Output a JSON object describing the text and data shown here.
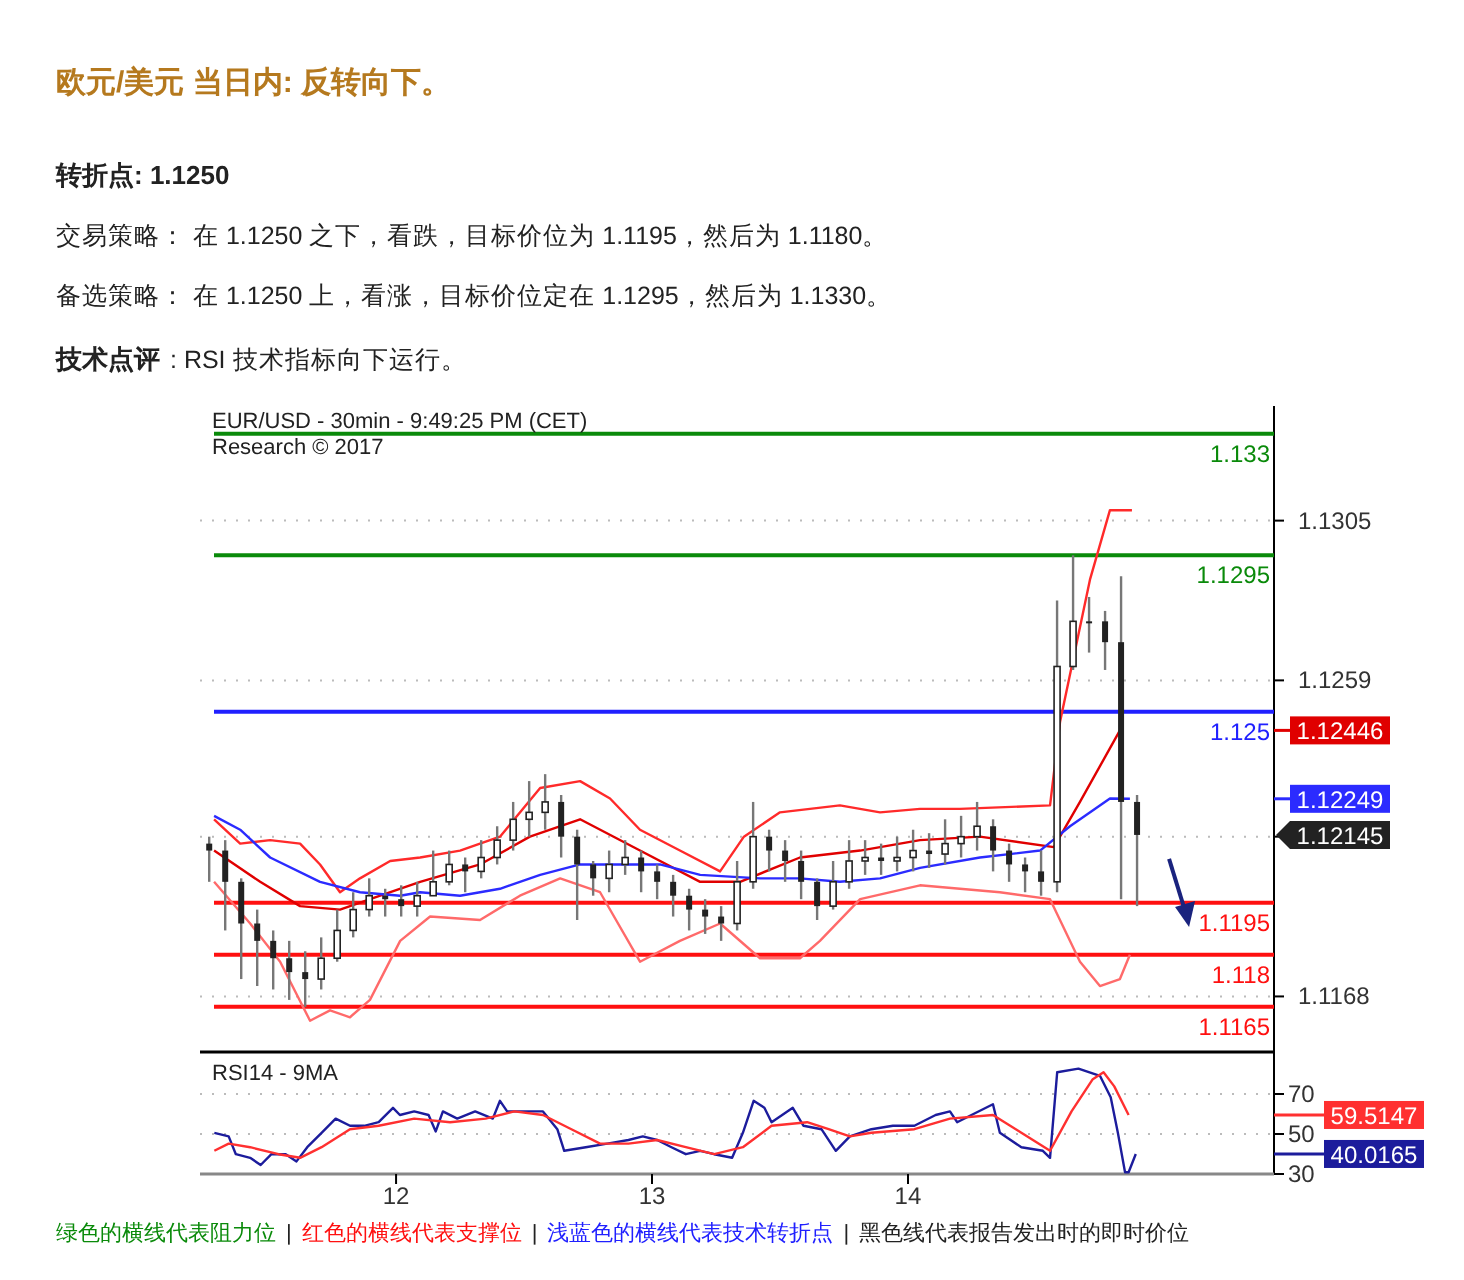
{
  "chart_data": [
    {
      "type": "candlestick",
      "title": "欧元/美元 当日内: 反转向下。",
      "color": "#222222",
      "annotations": [
        "转折点: 1.1250",
        "交易策略： 在 1.1250 之下，看跌，目标价位为 1.1195，然后为 1.1180。",
        "备选策略： 在 1.1250 上，看涨，目标价位定在 1.1295，然后为 1.1330。",
        "技术点评",
        ": RSI 技术指标向下运行。",
        "EUR/USD - 30min - 9:49:25 PM (CET)",
        "Research © 2017",
        "绿色的横线代表阻力位",
        "|",
        "红色的横线代表支撑位",
        "|",
        "浅蓝色的横线代表技术转折点",
        "|",
        "黑色线代表报告发出时的即时价位",
        "1.12446",
        "1.12249",
        "1.12145"
      ],
      "x": [
        11.27,
        11.3325,
        11.395,
        11.4575,
        11.52,
        11.5825,
        11.645,
        11.7075,
        11.77,
        11.8325,
        11.895,
        11.9575,
        12.02,
        12.0825,
        12.145,
        12.2075,
        12.27,
        12.3325,
        12.395,
        12.4575,
        12.52,
        12.5825,
        12.645,
        12.7075,
        12.77,
        12.8325,
        12.895,
        12.9575,
        13.02,
        13.0825,
        13.145,
        13.2075,
        13.27,
        13.3325,
        13.395,
        13.4575,
        13.52,
        13.5825,
        13.645,
        13.7075,
        13.77,
        13.8325,
        13.895,
        13.9575,
        14.02,
        14.0825,
        14.145,
        14.2075,
        14.27,
        14.3325,
        14.395,
        14.4575,
        14.52,
        14.5825,
        14.645,
        14.7075,
        14.77,
        14.8325,
        14.895
      ],
      "ohlc": [
        [
          1.1212,
          1.1214,
          1.1201,
          1.121
        ],
        [
          1.121,
          1.1213,
          1.1187,
          1.1201
        ],
        [
          1.1201,
          1.1202,
          1.1173,
          1.1189
        ],
        [
          1.1189,
          1.1193,
          1.1171,
          1.1184
        ],
        [
          1.1184,
          1.1187,
          1.117,
          1.1179
        ],
        [
          1.1179,
          1.1184,
          1.1167,
          1.1175
        ],
        [
          1.1175,
          1.1181,
          1.1165,
          1.1173
        ],
        [
          1.1173,
          1.1185,
          1.117,
          1.1179
        ],
        [
          1.1179,
          1.1193,
          1.1178,
          1.1187
        ],
        [
          1.1187,
          1.1198,
          1.1185,
          1.1193
        ],
        [
          1.1193,
          1.1202,
          1.1191,
          1.1197
        ],
        [
          1.1197,
          1.1199,
          1.1191,
          1.1196
        ],
        [
          1.1196,
          1.12,
          1.1191,
          1.1194
        ],
        [
          1.1194,
          1.1201,
          1.1191,
          1.1197
        ],
        [
          1.1197,
          1.121,
          1.1197,
          1.1201
        ],
        [
          1.1201,
          1.121,
          1.12,
          1.1206
        ],
        [
          1.1206,
          1.1208,
          1.1198,
          1.1204
        ],
        [
          1.1204,
          1.1213,
          1.1202,
          1.1208
        ],
        [
          1.1208,
          1.1217,
          1.1206,
          1.1213
        ],
        [
          1.1213,
          1.1224,
          1.121,
          1.1219
        ],
        [
          1.1219,
          1.123,
          1.1214,
          1.1221
        ],
        [
          1.1221,
          1.1232,
          1.1216,
          1.1224
        ],
        [
          1.1224,
          1.1226,
          1.1208,
          1.1214
        ],
        [
          1.1214,
          1.1216,
          1.119,
          1.1206
        ],
        [
          1.1206,
          1.1207,
          1.1197,
          1.1202
        ],
        [
          1.1202,
          1.121,
          1.1198,
          1.1206
        ],
        [
          1.1206,
          1.1213,
          1.1203,
          1.1208
        ],
        [
          1.1208,
          1.121,
          1.1198,
          1.1204
        ],
        [
          1.1204,
          1.1206,
          1.1196,
          1.1201
        ],
        [
          1.1201,
          1.1203,
          1.1191,
          1.1197
        ],
        [
          1.1197,
          1.1199,
          1.1187,
          1.1193
        ],
        [
          1.1193,
          1.1196,
          1.1186,
          1.1191
        ],
        [
          1.1191,
          1.1194,
          1.1184,
          1.1189
        ],
        [
          1.1189,
          1.1207,
          1.1187,
          1.1201
        ],
        [
          1.1201,
          1.1224,
          1.1199,
          1.1214
        ],
        [
          1.1214,
          1.1216,
          1.1204,
          1.121
        ],
        [
          1.121,
          1.1213,
          1.1201,
          1.1207
        ],
        [
          1.1207,
          1.121,
          1.1196,
          1.1201
        ],
        [
          1.1201,
          1.1202,
          1.119,
          1.1194
        ],
        [
          1.1194,
          1.1207,
          1.1193,
          1.1201
        ],
        [
          1.1201,
          1.1213,
          1.1199,
          1.1207
        ],
        [
          1.1207,
          1.1213,
          1.1203,
          1.1208
        ],
        [
          1.1208,
          1.1212,
          1.1203,
          1.1207
        ],
        [
          1.1207,
          1.1214,
          1.1204,
          1.1208
        ],
        [
          1.1208,
          1.1216,
          1.1204,
          1.121
        ],
        [
          1.121,
          1.1215,
          1.1205,
          1.1209
        ],
        [
          1.1209,
          1.1219,
          1.1206,
          1.1212
        ],
        [
          1.1212,
          1.122,
          1.1208,
          1.1214
        ],
        [
          1.1214,
          1.1224,
          1.121,
          1.1217
        ],
        [
          1.1217,
          1.1219,
          1.1204,
          1.121
        ],
        [
          1.121,
          1.1212,
          1.1201,
          1.1206
        ],
        [
          1.1206,
          1.1208,
          1.1198,
          1.1204
        ],
        [
          1.1204,
          1.121,
          1.1197,
          1.1201
        ],
        [
          1.1201,
          1.1282,
          1.1198,
          1.1263
        ],
        [
          1.1263,
          1.1295,
          1.1262,
          1.1276
        ],
        [
          1.1276,
          1.1283,
          1.1267,
          1.1276
        ],
        [
          1.1276,
          1.1279,
          1.1262,
          1.127
        ],
        [
          1.127,
          1.1289,
          1.1196,
          1.1224
        ],
        [
          1.1224,
          1.1226,
          1.1194,
          1.12145
        ]
      ],
      "series": [
        {
          "type": "line",
          "color": "#ff2a2a",
          "x": [
            11.289,
            11.391,
            11.508,
            11.625,
            11.703,
            11.781,
            11.859,
            11.977,
            12.094,
            12.25,
            12.406,
            12.563,
            12.719,
            12.836,
            12.953,
            13.109,
            13.266,
            13.359,
            13.5,
            13.734,
            13.891,
            14.047,
            14.203,
            14.555,
            14.594,
            14.711,
            14.789,
            14.875
          ],
          "values": [
            1.1219,
            1.1212,
            1.1213,
            1.1212,
            1.1206,
            1.1198,
            1.1202,
            1.1207,
            1.1208,
            1.121,
            1.1214,
            1.1228,
            1.123,
            1.1225,
            1.1216,
            1.121,
            1.1204,
            1.1214,
            1.1221,
            1.1223,
            1.1221,
            1.1222,
            1.1222,
            1.1223,
            1.1247,
            1.1288,
            1.1308,
            1.1308
          ]
        },
        {
          "type": "line",
          "color": "#e00000",
          "x": [
            11.289,
            11.469,
            11.625,
            11.781,
            11.938,
            12.094,
            12.328,
            12.523,
            12.719,
            12.953,
            13.188,
            13.344,
            13.578,
            13.813,
            14.047,
            14.281,
            14.57,
            14.672,
            14.828
          ],
          "values": [
            1.121,
            1.1201,
            1.1194,
            1.1193,
            1.1197,
            1.1201,
            1.1206,
            1.1214,
            1.1219,
            1.121,
            1.1201,
            1.1201,
            1.1208,
            1.121,
            1.1213,
            1.1214,
            1.1211,
            1.1224,
            1.12446
          ]
        },
        {
          "type": "line",
          "color": "#ff6a6a",
          "x": [
            11.289,
            11.43,
            11.547,
            11.664,
            11.742,
            11.82,
            11.898,
            12.016,
            12.133,
            12.328,
            12.484,
            12.641,
            12.797,
            12.953,
            13.109,
            13.266,
            13.422,
            13.578,
            13.656,
            13.813,
            14.047,
            14.359,
            14.555,
            14.672,
            14.75,
            14.828,
            14.867
          ],
          "values": [
            1.1201,
            1.1189,
            1.1178,
            1.1161,
            1.1164,
            1.1162,
            1.1167,
            1.1184,
            1.1191,
            1.119,
            1.1197,
            1.1202,
            1.1198,
            1.1178,
            1.1184,
            1.1189,
            1.1179,
            1.1179,
            1.1184,
            1.1196,
            1.12,
            1.1198,
            1.1196,
            1.1178,
            1.1171,
            1.1173,
            1.118
          ]
        },
        {
          "type": "line",
          "color": "#2b2bff",
          "x": [
            11.289,
            11.391,
            11.508,
            11.703,
            11.859,
            12.016,
            12.094,
            12.25,
            12.406,
            12.563,
            12.719,
            12.875,
            13.031,
            13.188,
            13.422,
            13.578,
            13.734,
            13.891,
            14.047,
            14.281,
            14.516,
            14.633,
            14.789,
            14.867
          ],
          "values": [
            1.122,
            1.1216,
            1.1208,
            1.1201,
            1.1198,
            1.1197,
            1.1198,
            1.1197,
            1.1199,
            1.1203,
            1.1206,
            1.1206,
            1.1206,
            1.1203,
            1.1202,
            1.1202,
            1.1201,
            1.1202,
            1.1205,
            1.1208,
            1.121,
            1.1217,
            1.1225,
            1.12249
          ]
        }
      ],
      "xlim": [
        11.234,
        15.43
      ],
      "ylim": [
        1.1152,
        1.1338
      ],
      "yticks": [
        1.1168,
        {
          "value": 1.1214,
          "label": null
        },
        1.1259,
        1.1305
      ],
      "grid": "y",
      "tick_labels": "y",
      "ref_lines": [
        {
          "axis": "y",
          "value": 1.133,
          "label": "1.133",
          "color": "#0a8a0a"
        },
        {
          "axis": "y",
          "value": 1.1295,
          "label": "1.1295",
          "color": "#0a8a0a"
        },
        {
          "axis": "y",
          "value": 1.125,
          "label": "1.125",
          "color": "#2020ff"
        },
        {
          "axis": "y",
          "value": 1.1195,
          "label": "1.1195",
          "color": "#ff1010"
        },
        {
          "axis": "y",
          "value": 1.118,
          "label": "1.118",
          "color": "#ff1010"
        },
        {
          "axis": "y",
          "value": 1.1165,
          "label": "1.1165",
          "color": "#ff1010"
        }
      ]
    },
    {
      "type": "line",
      "title": "RSI14 - 9MA",
      "series": [
        {
          "color": "#1c1c9c",
          "x": [
            11.29,
            11.346,
            11.374,
            11.43,
            11.471,
            11.513,
            11.569,
            11.611,
            11.653,
            11.709,
            11.764,
            11.82,
            11.876,
            11.932,
            11.988,
            12.015,
            12.071,
            12.127,
            12.155,
            12.183,
            12.239,
            12.309,
            12.378,
            12.406,
            12.434,
            12.49,
            12.574,
            12.63,
            12.657,
            12.741,
            12.825,
            12.908,
            12.964,
            13.02,
            13.076,
            13.132,
            13.188,
            13.243,
            13.313,
            13.355,
            13.397,
            13.439,
            13.467,
            13.55,
            13.592,
            13.662,
            13.718,
            13.773,
            13.857,
            13.941,
            14.025,
            14.108,
            14.164,
            14.192,
            14.248,
            14.332,
            14.359,
            14.443,
            14.527,
            14.555,
            14.583,
            14.666,
            14.75,
            14.792,
            14.82,
            14.848,
            14.862,
            14.89
          ],
          "values": [
            50.6,
            48.8,
            39.9,
            38.1,
            34.5,
            39.9,
            39.9,
            36.3,
            43.4,
            50.6,
            57.7,
            54.1,
            54.1,
            55.9,
            63.1,
            59.5,
            61.3,
            59.5,
            51.3,
            61.3,
            57.7,
            61.3,
            57.7,
            66.6,
            61.3,
            61.3,
            61.3,
            52.4,
            41.6,
            43.4,
            45.2,
            47.0,
            48.8,
            47.0,
            43.4,
            39.9,
            41.6,
            39.9,
            38.1,
            50.6,
            66.6,
            63.1,
            55.9,
            63.1,
            54.1,
            52.4,
            41.6,
            48.8,
            52.4,
            54.1,
            54.1,
            59.5,
            61.3,
            55.9,
            59.5,
            64.9,
            50.6,
            43.4,
            41.6,
            38.1,
            80.9,
            82.7,
            79.1,
            68.4,
            50.6,
            30.9,
            30.9,
            40.0165
          ]
        },
        {
          "color": "#ff3030",
          "x": [
            11.29,
            11.346,
            11.43,
            11.541,
            11.625,
            11.709,
            11.82,
            11.932,
            12.071,
            12.211,
            12.35,
            12.462,
            12.574,
            12.685,
            12.797,
            12.908,
            13.02,
            13.132,
            13.243,
            13.355,
            13.467,
            13.606,
            13.69,
            13.773,
            13.857,
            14.025,
            14.164,
            14.332,
            14.443,
            14.555,
            14.639,
            14.722,
            14.764,
            14.806,
            14.862
          ],
          "values": [
            41.6,
            45.2,
            43.4,
            39.9,
            38.1,
            43.4,
            52.4,
            54.1,
            57.7,
            55.9,
            57.7,
            61.3,
            59.5,
            52.4,
            45.2,
            45.2,
            47.0,
            43.4,
            39.9,
            43.4,
            54.1,
            55.9,
            52.4,
            48.8,
            50.6,
            52.4,
            57.7,
            59.5,
            50.6,
            41.6,
            61.3,
            77.4,
            80.9,
            73.8,
            59.5147
          ]
        }
      ],
      "annotations": [
        "59.5147",
        "40.0165"
      ],
      "xlim": [
        11.234,
        15.43
      ],
      "xticks": [
        12,
        13,
        14
      ],
      "ylim": [
        30,
        91
      ],
      "yticks": [
        30,
        50,
        70
      ],
      "grid": "y"
    }
  ]
}
